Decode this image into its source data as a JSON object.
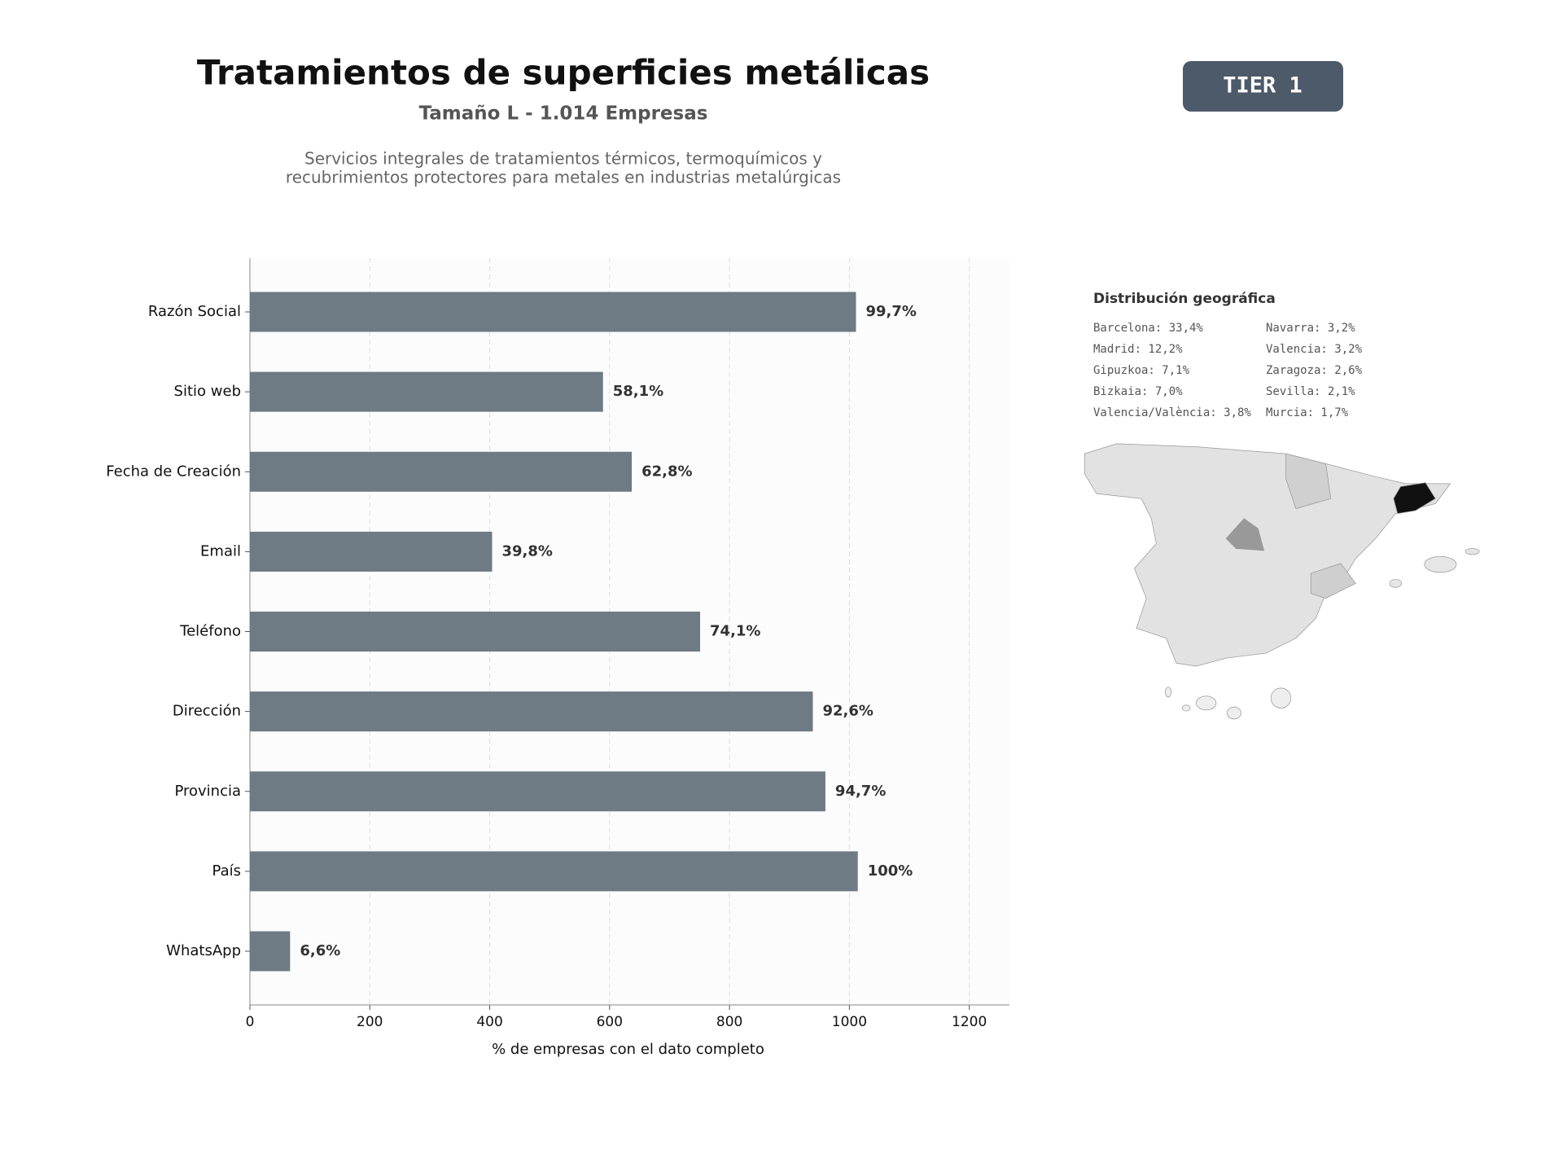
{
  "header": {
    "title": "Tratamientos de superficies metálicas",
    "subtitle": "Tamaño L - 1.014 Empresas",
    "description": [
      "Servicios integrales de tratamientos térmicos, termoquímicos y",
      "recubrimientos protectores para metales en industrias metalúrgicas"
    ],
    "badge": "TIER 1"
  },
  "chart_data": {
    "type": "bar",
    "orientation": "horizontal",
    "categories": [
      "Razón Social",
      "Sitio web",
      "Fecha de Creación",
      "Email",
      "Teléfono",
      "Dirección",
      "Provincia",
      "País",
      "WhatsApp"
    ],
    "values": [
      1011,
      589,
      637,
      404,
      751,
      939,
      960,
      1014,
      67
    ],
    "value_labels": [
      "99,7%",
      "58,1%",
      "62,8%",
      "39,8%",
      "74,1%",
      "92,6%",
      "94,7%",
      "100%",
      "6,6%"
    ],
    "color": "#6e7a84",
    "xlim": [
      0,
      1267
    ],
    "xticks": [
      0,
      200,
      400,
      600,
      800,
      1000,
      1200
    ],
    "xlabel": "% de empresas con el dato completo",
    "grid": true
  },
  "geo_distribution": {
    "title": "Distribución geográfica",
    "items": [
      "Barcelona: 33,4%",
      "Madrid: 12,2%",
      "Gipuzkoa: 7,1%",
      "Bizkaia: 7,0%",
      "Valencia/València: 3,8%",
      "Navarra: 3,2%",
      "Valencia: 3,2%",
      "Zaragoza: 2,6%",
      "Sevilla: 2,1%",
      "Murcia: 1,7%"
    ]
  }
}
